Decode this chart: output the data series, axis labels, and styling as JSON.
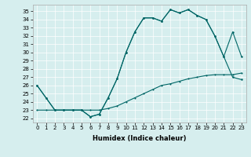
{
  "xlabel": "Humidex (Indice chaleur)",
  "background_color": "#d6eeee",
  "line_color": "#006666",
  "xlim": [
    -0.5,
    23.5
  ],
  "ylim": [
    21.5,
    35.8
  ],
  "yticks": [
    22,
    23,
    24,
    25,
    26,
    27,
    28,
    29,
    30,
    31,
    32,
    33,
    34,
    35
  ],
  "xticks": [
    0,
    1,
    2,
    3,
    4,
    5,
    6,
    7,
    8,
    9,
    10,
    11,
    12,
    13,
    14,
    15,
    16,
    17,
    18,
    19,
    20,
    21,
    22,
    23
  ],
  "line1_x": [
    0,
    1,
    2,
    3,
    4,
    5,
    6,
    7,
    8,
    9,
    10,
    11,
    12,
    13,
    14,
    15,
    16,
    17,
    18,
    19,
    20,
    21,
    22,
    23
  ],
  "line1_y": [
    26.0,
    24.5,
    23.0,
    23.0,
    23.0,
    23.0,
    22.2,
    22.5,
    24.5,
    26.8,
    30.0,
    32.5,
    34.2,
    34.2,
    33.8,
    35.2,
    34.8,
    35.2,
    34.5,
    34.0,
    32.0,
    29.5,
    32.5,
    29.5
  ],
  "line2_x": [
    0,
    1,
    2,
    3,
    4,
    5,
    6,
    7,
    8,
    9,
    10,
    11,
    12,
    13,
    14,
    15,
    16,
    17,
    18,
    19,
    20,
    21,
    22,
    23
  ],
  "line2_y": [
    26.0,
    24.5,
    23.0,
    23.0,
    23.0,
    23.0,
    22.2,
    22.5,
    24.5,
    26.8,
    30.0,
    32.5,
    34.2,
    34.2,
    33.8,
    35.2,
    34.8,
    35.2,
    34.5,
    34.0,
    32.0,
    29.5,
    27.0,
    26.7
  ],
  "line3_x": [
    0,
    1,
    2,
    3,
    4,
    5,
    6,
    7,
    8,
    9,
    10,
    11,
    12,
    13,
    14,
    15,
    16,
    17,
    18,
    19,
    20,
    21,
    22,
    23
  ],
  "line3_y": [
    23.0,
    23.0,
    23.0,
    23.0,
    23.0,
    23.0,
    23.0,
    23.0,
    23.2,
    23.5,
    24.0,
    24.5,
    25.0,
    25.5,
    26.0,
    26.2,
    26.5,
    26.8,
    27.0,
    27.2,
    27.3,
    27.3,
    27.3,
    27.5
  ]
}
